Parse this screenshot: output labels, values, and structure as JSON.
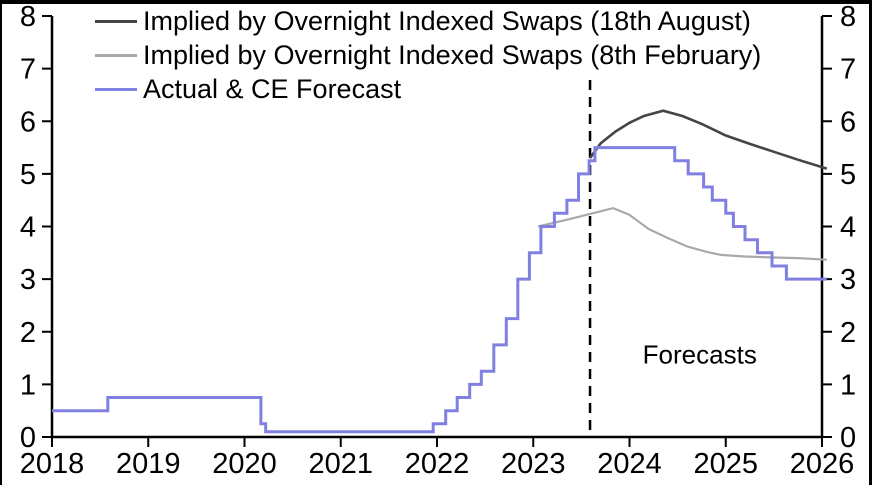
{
  "chart_data": {
    "type": "line",
    "title": "",
    "xlabel": "",
    "ylabel": "",
    "xlim": [
      2018,
      2026
    ],
    "ylim": [
      0,
      8
    ],
    "x_ticks": [
      2018,
      2019,
      2020,
      2021,
      2022,
      2023,
      2024,
      2025,
      2026
    ],
    "y_ticks": [
      0,
      1,
      2,
      3,
      4,
      5,
      6,
      7,
      8
    ],
    "y_axis_sides": "both",
    "grid": false,
    "legend_position": "top-left",
    "axis_color": "#000000",
    "forecast_divider": {
      "x": 2023.59,
      "style": "dashed",
      "color": "#000000"
    },
    "annotations": [
      {
        "text": "Forecasts",
        "x": 2024.73,
        "y": 1.55
      }
    ],
    "series": [
      {
        "name": "Implied by Overnight Indexed Swaps (18th August)",
        "color": "#454545",
        "line_type": "straight",
        "points": [
          [
            2023.59,
            5.3
          ],
          [
            2023.7,
            5.58
          ],
          [
            2023.85,
            5.8
          ],
          [
            2024.0,
            5.97
          ],
          [
            2024.15,
            6.1
          ],
          [
            2024.35,
            6.2
          ],
          [
            2024.55,
            6.1
          ],
          [
            2024.75,
            5.95
          ],
          [
            2025.0,
            5.73
          ],
          [
            2025.25,
            5.57
          ],
          [
            2025.5,
            5.42
          ],
          [
            2025.75,
            5.27
          ],
          [
            2026.05,
            5.1
          ]
        ]
      },
      {
        "name": "Implied by Overnight Indexed Swaps (8th February)",
        "color": "#a9a9a9",
        "line_type": "straight",
        "points": [
          [
            2023.05,
            4.0
          ],
          [
            2023.4,
            4.15
          ],
          [
            2023.83,
            4.35
          ],
          [
            2024.0,
            4.22
          ],
          [
            2024.2,
            3.95
          ],
          [
            2024.4,
            3.78
          ],
          [
            2024.6,
            3.62
          ],
          [
            2024.8,
            3.52
          ],
          [
            2024.95,
            3.46
          ],
          [
            2025.2,
            3.43
          ],
          [
            2025.5,
            3.41
          ],
          [
            2025.75,
            3.4
          ],
          [
            2026.05,
            3.37
          ]
        ]
      },
      {
        "name": "Actual & CE Forecast",
        "color": "#8080e2",
        "line_type": "step",
        "points": [
          [
            2018.0,
            0.5
          ],
          [
            2018.58,
            0.5
          ],
          [
            2018.58,
            0.75
          ],
          [
            2020.17,
            0.75
          ],
          [
            2020.17,
            0.25
          ],
          [
            2020.22,
            0.25
          ],
          [
            2020.22,
            0.1
          ],
          [
            2021.96,
            0.1
          ],
          [
            2021.96,
            0.25
          ],
          [
            2022.09,
            0.25
          ],
          [
            2022.09,
            0.5
          ],
          [
            2022.21,
            0.5
          ],
          [
            2022.21,
            0.75
          ],
          [
            2022.34,
            0.75
          ],
          [
            2022.34,
            1.0
          ],
          [
            2022.46,
            1.0
          ],
          [
            2022.46,
            1.25
          ],
          [
            2022.59,
            1.25
          ],
          [
            2022.59,
            1.75
          ],
          [
            2022.72,
            1.75
          ],
          [
            2022.72,
            2.25
          ],
          [
            2022.84,
            2.25
          ],
          [
            2022.84,
            3.0
          ],
          [
            2022.96,
            3.0
          ],
          [
            2022.96,
            3.5
          ],
          [
            2023.08,
            3.5
          ],
          [
            2023.08,
            4.0
          ],
          [
            2023.22,
            4.0
          ],
          [
            2023.22,
            4.25
          ],
          [
            2023.35,
            4.25
          ],
          [
            2023.35,
            4.5
          ],
          [
            2023.47,
            4.5
          ],
          [
            2023.47,
            5.0
          ],
          [
            2023.58,
            5.0
          ],
          [
            2023.58,
            5.25
          ],
          [
            2023.64,
            5.25
          ],
          [
            2023.64,
            5.5
          ],
          [
            2024.47,
            5.5
          ],
          [
            2024.47,
            5.25
          ],
          [
            2024.61,
            5.25
          ],
          [
            2024.61,
            5.0
          ],
          [
            2024.77,
            5.0
          ],
          [
            2024.77,
            4.75
          ],
          [
            2024.86,
            4.75
          ],
          [
            2024.86,
            4.5
          ],
          [
            2025.0,
            4.5
          ],
          [
            2025.0,
            4.25
          ],
          [
            2025.08,
            4.25
          ],
          [
            2025.08,
            4.0
          ],
          [
            2025.2,
            4.0
          ],
          [
            2025.2,
            3.75
          ],
          [
            2025.33,
            3.75
          ],
          [
            2025.33,
            3.5
          ],
          [
            2025.48,
            3.5
          ],
          [
            2025.48,
            3.25
          ],
          [
            2025.63,
            3.25
          ],
          [
            2025.63,
            3.0
          ],
          [
            2026.05,
            3.0
          ]
        ]
      }
    ]
  }
}
